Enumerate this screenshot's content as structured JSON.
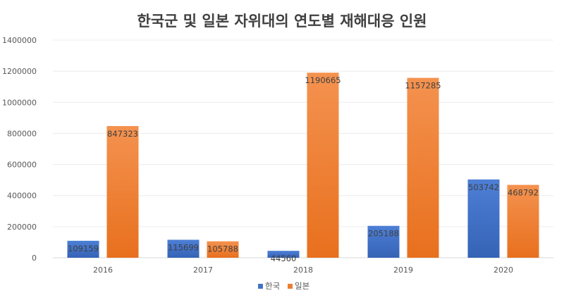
{
  "chart_data": {
    "type": "bar",
    "title": "한국군 및 일본 자위대의 연도별 재해대응 인원",
    "xlabel": "",
    "ylabel": "",
    "categories": [
      "2016",
      "2017",
      "2018",
      "2019",
      "2020"
    ],
    "series": [
      {
        "name": "한국",
        "values": [
          109159,
          115699,
          44560,
          205188,
          503742
        ],
        "color": "#4472C4"
      },
      {
        "name": "일본",
        "values": [
          847323,
          105788,
          1190665,
          1157285,
          468792
        ],
        "color": "#ED7D31"
      }
    ],
    "ylim": [
      0,
      1400000
    ],
    "yticks": [
      "0",
      "200000",
      "400000",
      "600000",
      "800000",
      "1000000",
      "1200000",
      "1400000"
    ],
    "grid": true,
    "legend_position": "bottom"
  }
}
